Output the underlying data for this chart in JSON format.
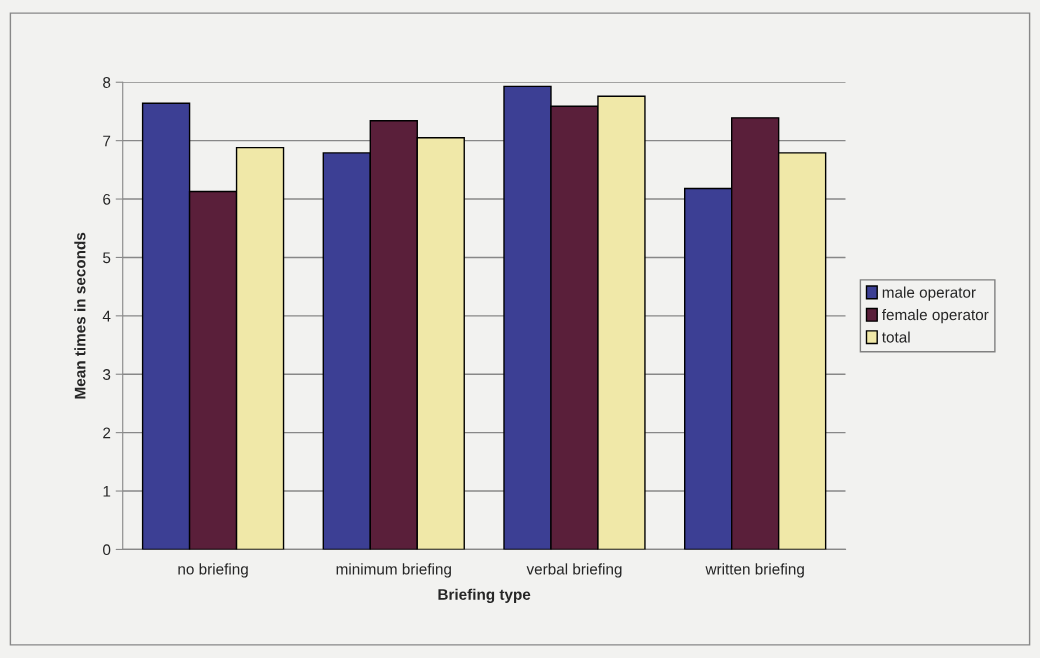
{
  "chart_data": {
    "type": "bar",
    "xlabel": "Briefing type",
    "ylabel": "Mean times in seconds",
    "categories": [
      "no briefing",
      "minimum briefing",
      "verbal briefing",
      "written briefing"
    ],
    "series": [
      {
        "name": "male operator",
        "color": "#3c3f94",
        "values": [
          7.64,
          6.79,
          7.93,
          6.18
        ]
      },
      {
        "name": "female operator",
        "color": "#5a1f3a",
        "values": [
          6.13,
          7.34,
          7.59,
          7.39
        ]
      },
      {
        "name": "total",
        "color": "#f0e8a8",
        "values": [
          6.88,
          7.05,
          7.76,
          6.79
        ]
      }
    ],
    "ylim": [
      0,
      8
    ],
    "yticks": [
      0,
      1,
      2,
      3,
      4,
      5,
      6,
      7,
      8
    ],
    "grid": "y",
    "legend": "right"
  }
}
